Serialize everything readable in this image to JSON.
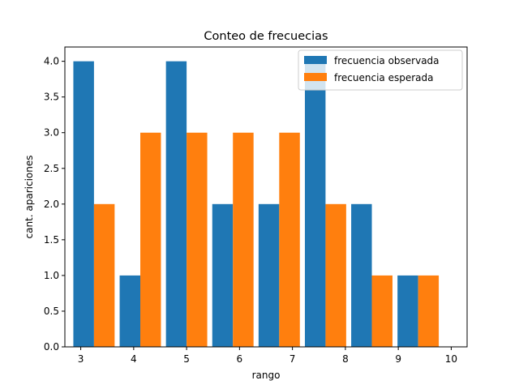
{
  "chart_data": {
    "type": "bar",
    "title": "Conteo de frecuecias",
    "xlabel": "rango",
    "ylabel": "cant. apariciones",
    "xlim": [
      2.7,
      10.3
    ],
    "ylim": [
      0,
      4.2
    ],
    "x_ticks": [
      3,
      4,
      5,
      6,
      7,
      8,
      9,
      10
    ],
    "y_ticks": [
      0.0,
      0.5,
      1.0,
      1.5,
      2.0,
      2.5,
      3.0,
      3.5,
      4.0
    ],
    "bar_centers": [
      3.25,
      4.125,
      5.0,
      5.875,
      6.75,
      7.625,
      8.5,
      9.375
    ],
    "bar_width": 0.39,
    "legend_position": "top-right",
    "grid": false,
    "series": [
      {
        "name": "frecuencia observada",
        "color": "#1f77b4",
        "values": [
          4,
          1,
          4,
          2,
          2,
          4,
          2,
          1
        ]
      },
      {
        "name": "frecuencia esperada",
        "color": "#ff7f0e",
        "values": [
          2,
          3,
          3,
          3,
          3,
          2,
          1,
          1
        ]
      }
    ]
  }
}
